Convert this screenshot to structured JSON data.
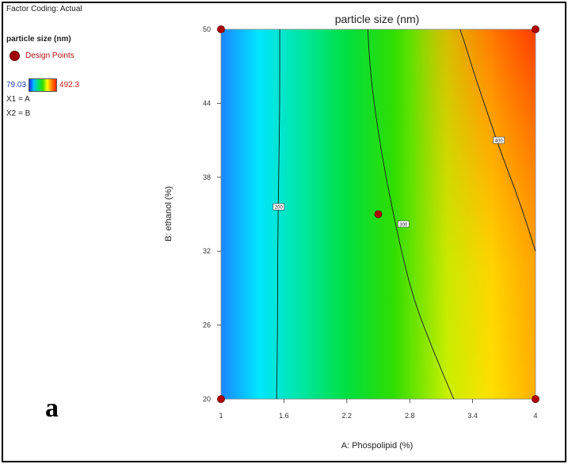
{
  "legend": {
    "factor_coding": "Factor Coding: Actual",
    "response": "particle size (nm)",
    "design_points": "Design Points",
    "scale_min": "79.03",
    "scale_max": "492.3",
    "x1": "X1 = A",
    "x2": "X2 = B"
  },
  "panel_label": "a",
  "chart_data": {
    "type": "contour",
    "title": "particle size (nm)",
    "xlabel": "A: Phospolipid (%)",
    "ylabel": "B: ethanol (%)",
    "xlim": [
      1,
      4
    ],
    "ylim": [
      20,
      50
    ],
    "x_ticks": [
      "1",
      "1.6",
      "2.2",
      "2.8",
      "3.4",
      "4"
    ],
    "y_ticks": [
      "20",
      "26",
      "32",
      "38",
      "44",
      "50"
    ],
    "color_scale": {
      "min": 79.03,
      "max": 492.3,
      "colors": [
        "#1030ff",
        "#00c0ff",
        "#00e070",
        "#30dd00",
        "#ffff00",
        "#ff8000",
        "#ff2000"
      ]
    },
    "contours": [
      {
        "label": "200",
        "points": [
          [
            1.53,
            20
          ],
          [
            1.54,
            26
          ],
          [
            1.54,
            32
          ],
          [
            1.55,
            38
          ],
          [
            1.56,
            44
          ],
          [
            1.56,
            50
          ]
        ],
        "label_at": [
          1.55,
          35.6
        ]
      },
      {
        "label": "300",
        "points": [
          [
            3.22,
            20
          ],
          [
            3.02,
            24
          ],
          [
            2.84,
            28
          ],
          [
            2.72,
            32
          ],
          [
            2.62,
            36
          ],
          [
            2.53,
            40
          ],
          [
            2.46,
            44
          ],
          [
            2.42,
            47
          ],
          [
            2.4,
            50
          ]
        ],
        "label_at": [
          2.74,
          34.2
        ]
      },
      {
        "label": "400",
        "points": [
          [
            4.0,
            32
          ],
          [
            3.85,
            36
          ],
          [
            3.67,
            40
          ],
          [
            3.55,
            43
          ],
          [
            3.43,
            46
          ],
          [
            3.32,
            49
          ],
          [
            3.28,
            50
          ]
        ],
        "label_at": [
          3.65,
          41
        ]
      }
    ],
    "design_points": [
      {
        "x": 1,
        "y": 20
      },
      {
        "x": 1,
        "y": 50
      },
      {
        "x": 4,
        "y": 20
      },
      {
        "x": 4,
        "y": 50
      },
      {
        "x": 2.5,
        "y": 35
      }
    ]
  }
}
